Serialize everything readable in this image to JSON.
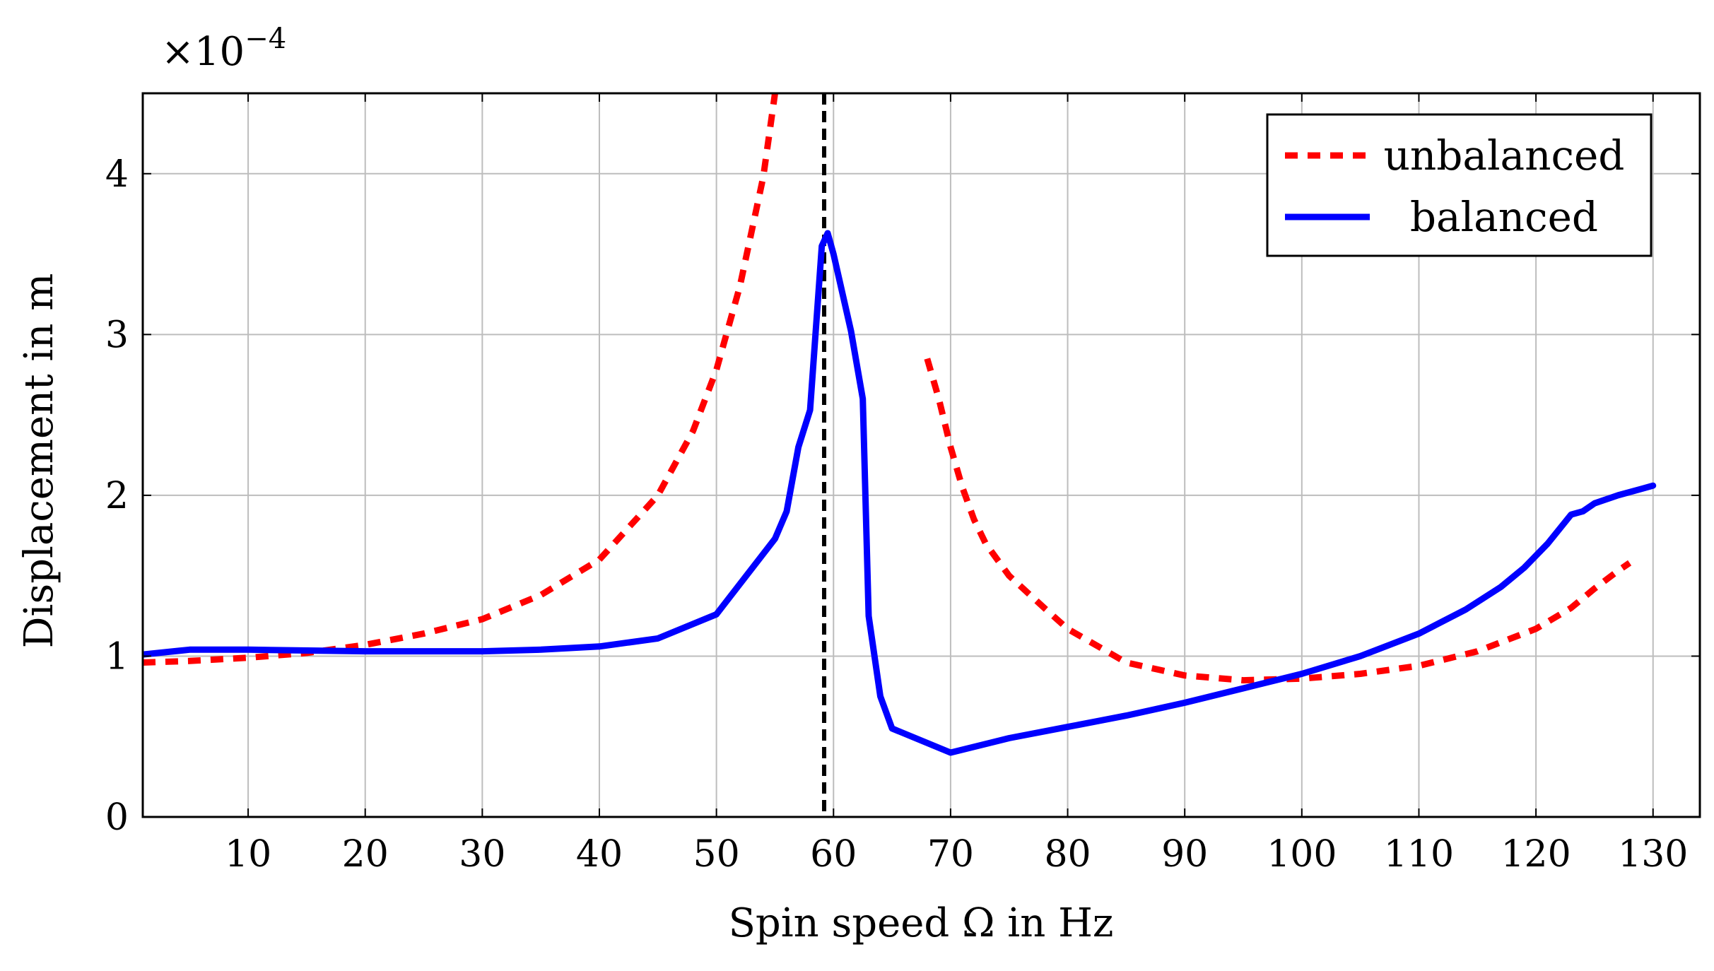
{
  "chart_data": {
    "type": "line",
    "title": "",
    "xlabel": "Spin speed Ω in Hz",
    "ylabel": "Displacement in m",
    "y_scale_text": "×10",
    "y_scale_exponent": "−4",
    "xlim": [
      1,
      134
    ],
    "ylim": [
      0,
      4.5
    ],
    "x_ticks": [
      10,
      20,
      30,
      40,
      50,
      60,
      70,
      80,
      90,
      100,
      110,
      120,
      130
    ],
    "x_tick_labels": [
      "10",
      "20",
      "30",
      "40",
      "50",
      "60",
      "70",
      "80",
      "90",
      "100",
      "110",
      "120",
      "130"
    ],
    "y_ticks": [
      0,
      1,
      2,
      3,
      4
    ],
    "y_tick_labels": [
      "0",
      "1",
      "2",
      "3",
      "4"
    ],
    "grid": true,
    "legend_position": "top-right",
    "reference_line": {
      "x": 59.2,
      "style": "dashed",
      "color": "#000000"
    },
    "series": [
      {
        "name": "unbalanced",
        "color": "#ff0000",
        "style": "dashed",
        "segments": [
          {
            "x": [
              1,
              5,
              10,
              15,
              20,
              25,
              30,
              35,
              40,
              45,
              48,
              50,
              52,
              54,
              55
            ],
            "y": [
              0.96,
              0.97,
              0.99,
              1.02,
              1.07,
              1.14,
              1.23,
              1.38,
              1.6,
              2.0,
              2.4,
              2.78,
              3.3,
              3.98,
              4.5
            ]
          },
          {
            "x": [
              68,
              69,
              70,
              71,
              72,
              73,
              75,
              78,
              80,
              85,
              90,
              95,
              100,
              105,
              110,
              115,
              120,
              123,
              125,
              127,
              128
            ],
            "y": [
              2.85,
              2.6,
              2.3,
              2.05,
              1.85,
              1.7,
              1.5,
              1.3,
              1.17,
              0.96,
              0.88,
              0.85,
              0.86,
              0.89,
              0.94,
              1.03,
              1.17,
              1.3,
              1.42,
              1.53,
              1.58
            ]
          }
        ]
      },
      {
        "name": "balanced",
        "color": "#0000ff",
        "style": "solid",
        "segments": [
          {
            "x": [
              1,
              5,
              10,
              20,
              30,
              35,
              40,
              45,
              50,
              55,
              56,
              57,
              58,
              59,
              59.5,
              60,
              61.5,
              62.5,
              63,
              64,
              65,
              70,
              75,
              80,
              85,
              90,
              95,
              100,
              105,
              110,
              114,
              117,
              119,
              121,
              123,
              124,
              125,
              127,
              129,
              130
            ],
            "y": [
              1.01,
              1.04,
              1.04,
              1.03,
              1.03,
              1.04,
              1.06,
              1.11,
              1.26,
              1.73,
              1.9,
              2.3,
              2.53,
              3.55,
              3.63,
              3.5,
              3.02,
              2.6,
              1.25,
              0.75,
              0.55,
              0.4,
              0.49,
              0.56,
              0.63,
              0.71,
              0.8,
              0.89,
              1.0,
              1.14,
              1.29,
              1.43,
              1.55,
              1.7,
              1.88,
              1.9,
              1.95,
              2.0,
              2.04,
              2.06
            ]
          }
        ]
      }
    ]
  }
}
